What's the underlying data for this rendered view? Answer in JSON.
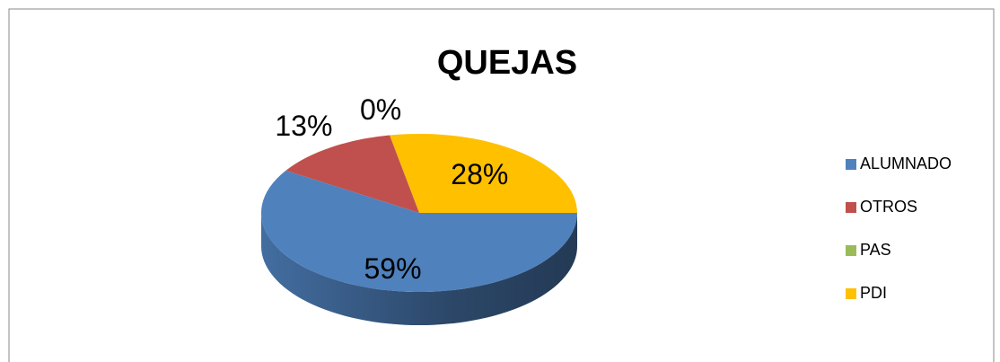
{
  "chart_data": {
    "type": "pie",
    "title": "QUEJAS",
    "categories": [
      "ALUMNADO",
      "OTROS",
      "PAS",
      "PDI"
    ],
    "values": [
      59,
      13,
      0,
      28
    ],
    "value_labels": [
      "59%",
      "13%",
      "0%",
      "28%"
    ],
    "colors": [
      "#4f81bd",
      "#c0504d",
      "#9bbb59",
      "#ffc000"
    ],
    "legend": "right"
  }
}
